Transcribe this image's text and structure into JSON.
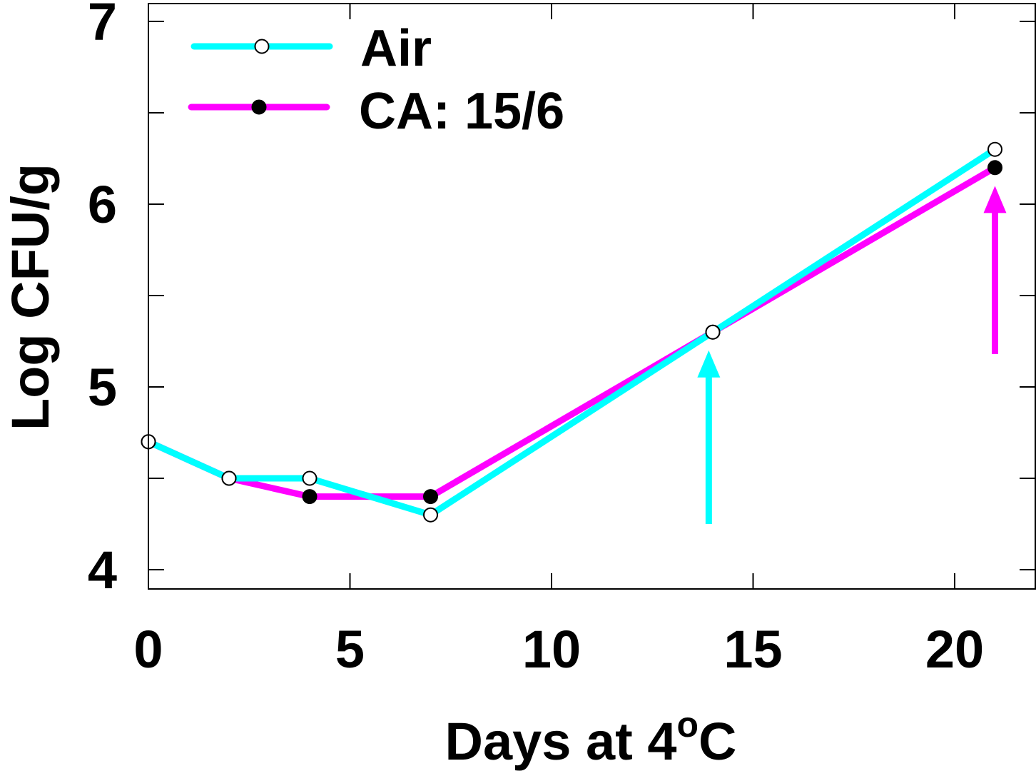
{
  "chart_data": {
    "type": "line",
    "title": "",
    "xlabel_main": "Days at 4",
    "xlabel_sup": "o",
    "xlabel_unit": "C",
    "ylabel": "Log CFU/g",
    "xlim": [
      0,
      22
    ],
    "ylim": [
      3.9,
      7.1
    ],
    "xticks": [
      0,
      5,
      10,
      15,
      20
    ],
    "yticks": [
      4,
      5,
      6,
      7
    ],
    "yminor": [
      4.5,
      5.5,
      6.5
    ],
    "xtick_labels": [
      "0",
      "5",
      "10",
      "15",
      "20"
    ],
    "ytick_labels": [
      "4",
      "5",
      "6",
      "7"
    ],
    "grid": false,
    "legend_position": "top-left",
    "series": [
      {
        "name": "CA: 15/6",
        "color": "#ff00ff",
        "marker": "filled-circle",
        "x": [
          0,
          2,
          4,
          7,
          14,
          21
        ],
        "y": [
          4.7,
          4.5,
          4.4,
          4.4,
          5.3,
          6.2
        ]
      },
      {
        "name": "Air",
        "color": "#00ffff",
        "marker": "open-circle",
        "x": [
          0,
          2,
          4,
          7,
          14,
          21
        ],
        "y": [
          4.7,
          4.5,
          4.5,
          4.3,
          5.3,
          6.3
        ]
      }
    ],
    "annotations": [
      {
        "kind": "arrow-up",
        "color": "#00ffff",
        "x": 13.9,
        "y_from": 4.25,
        "y_to": 5.2
      },
      {
        "kind": "arrow-up",
        "color": "#ff00ff",
        "x": 21,
        "y_from": 5.18,
        "y_to": 6.1
      }
    ]
  }
}
